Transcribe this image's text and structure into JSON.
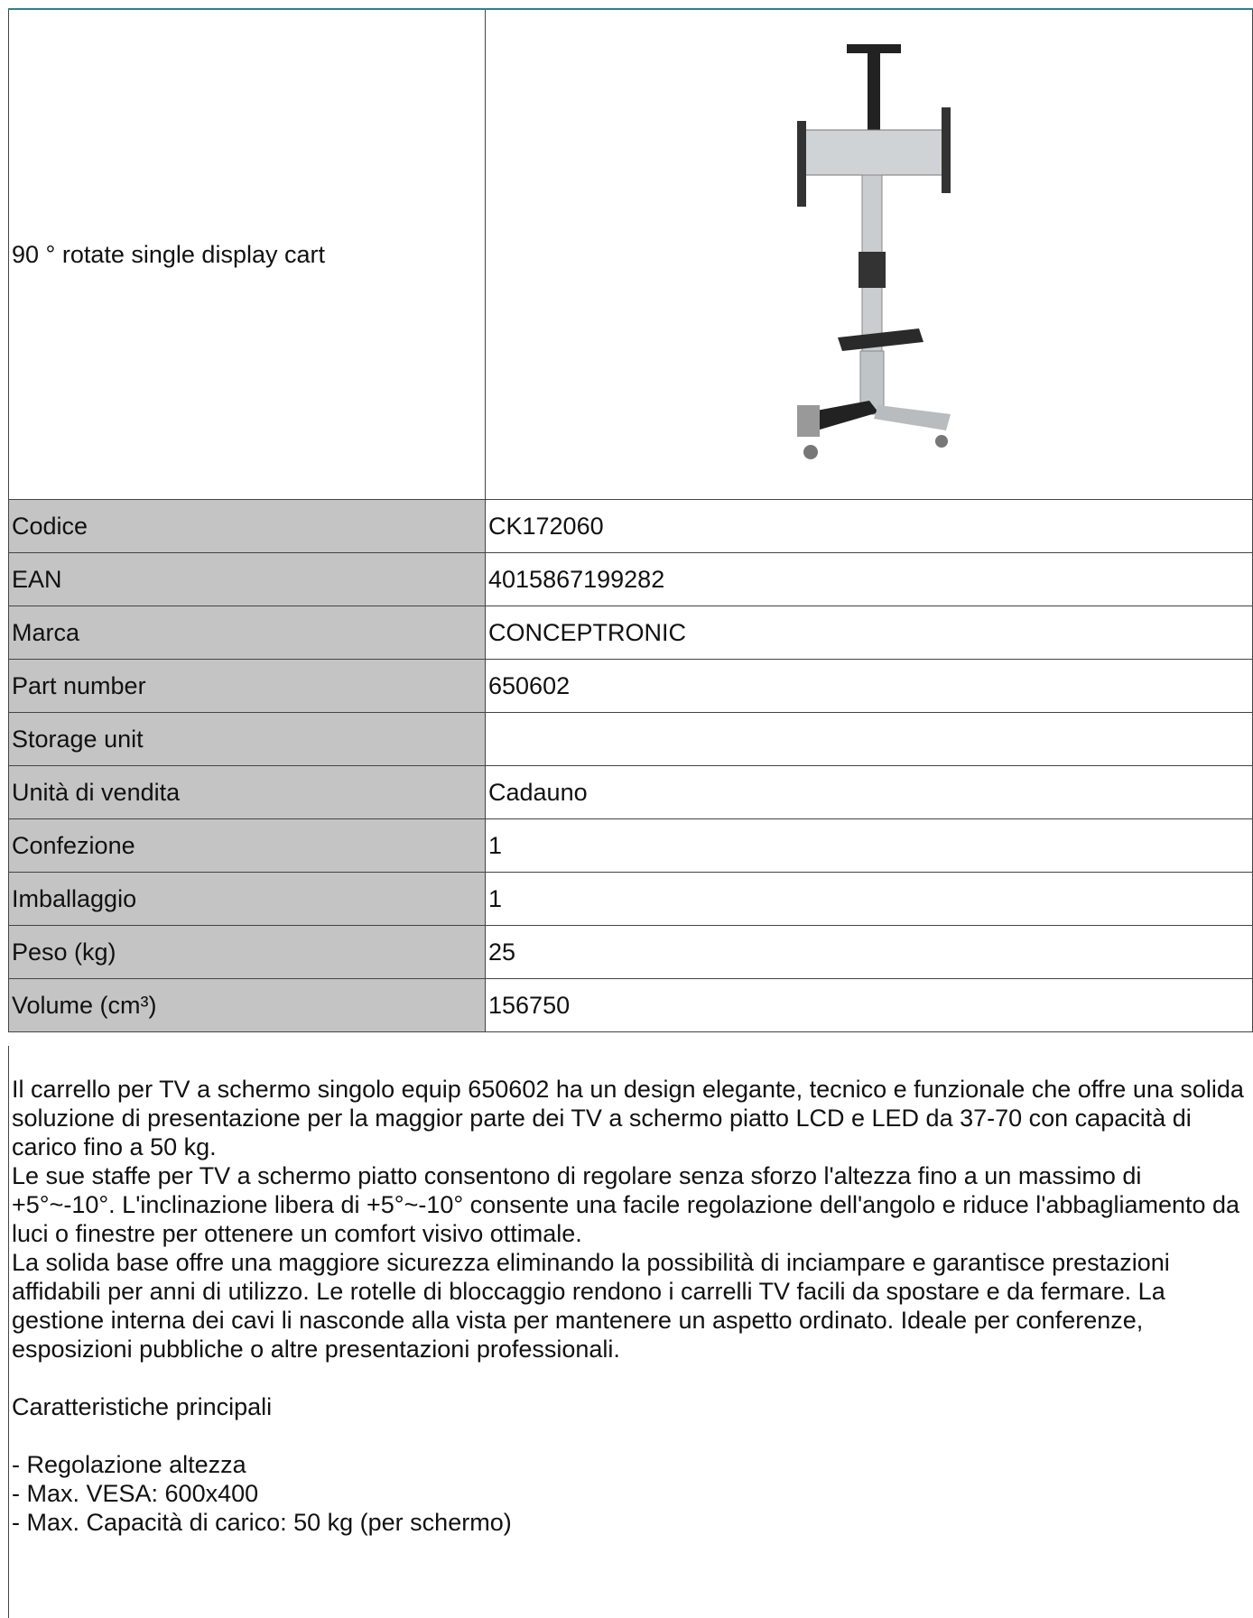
{
  "product": {
    "title": "90 ° rotate single display cart",
    "rows": [
      {
        "label": "Codice",
        "value": "CK172060"
      },
      {
        "label": "EAN",
        "value": "4015867199282"
      },
      {
        "label": "Marca",
        "value": "CONCEPTRONIC"
      },
      {
        "label": "Part number",
        "value": "650602"
      },
      {
        "label": "Storage unit"
      },
      {
        "label": "Unità di vendita",
        "value": "Cadauno"
      },
      {
        "label": "Confezione",
        "value": "1"
      },
      {
        "label": "Imballaggio",
        "value": "1"
      },
      {
        "label": "Peso (kg)",
        "value": "25"
      },
      {
        "label": "Volume (cm³)",
        "value": "156750"
      }
    ]
  },
  "description": {
    "paragraphs": [
      "Il carrello per TV a schermo singolo equip 650602 ha un design elegante, tecnico e funzionale che offre una solida soluzione di presentazione per la maggior parte dei TV a schermo piatto LCD e LED da 37-70 con capacità di carico fino a 50 kg.",
      "Le sue staffe per TV a schermo piatto consentono di regolare senza sforzo l'altezza fino a un massimo di +5°~-10°. L'inclinazione libera di +5°~-10° consente una facile regolazione dell'angolo e riduce l'abbagliamento da luci o finestre per ottenere un comfort visivo ottimale.",
      "La solida base offre una maggiore sicurezza eliminando la possibilità di inciampare e garantisce prestazioni affidabili per anni di utilizzo. Le rotelle di bloccaggio rendono i carrelli TV facili da spostare e da fermare. La gestione interna dei cavi li nasconde alla vista per mantenere un aspetto ordinato. Ideale per conferenze, esposizioni pubbliche o altre presentazioni professionali."
    ],
    "features_heading": "Caratteristiche principali",
    "features": [
      "- Regolazione altezza",
      "- Max. VESA: 600x400",
      "- Max. Capacità di carico: 50 kg (per schermo)"
    ]
  }
}
